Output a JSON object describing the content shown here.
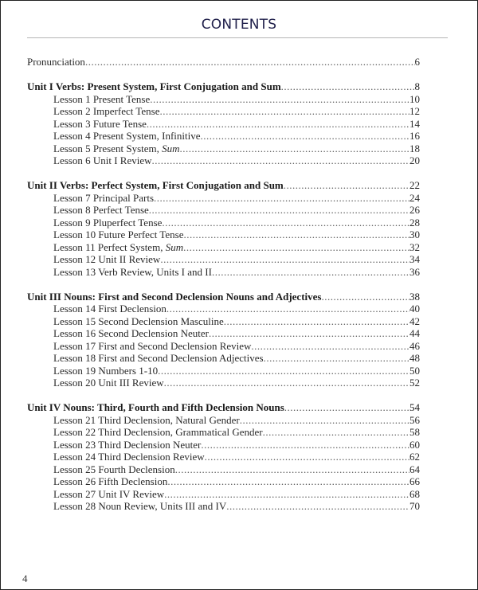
{
  "title": "CONTENTS",
  "page_number": "4",
  "sections": [
    {
      "entries": [
        {
          "type": "top",
          "label": "Pronunciation ",
          "page": "6"
        }
      ]
    },
    {
      "entries": [
        {
          "type": "unit",
          "label": "Unit I   Verbs:  Present System, First Conjugation and Sum  ",
          "page": "8"
        },
        {
          "type": "lesson",
          "label": "Lesson 1 Present Tense",
          "page": "10"
        },
        {
          "type": "lesson",
          "label": "Lesson 2 Imperfect Tense",
          "page": "12"
        },
        {
          "type": "lesson",
          "label": "Lesson 3 Future Tense ",
          "page": "14"
        },
        {
          "type": "lesson",
          "label": "Lesson 4 Present System, Infinitive",
          "page": "16"
        },
        {
          "type": "lesson",
          "label": "Lesson 5 Present System, ",
          "em": "Sum",
          "page": "18"
        },
        {
          "type": "lesson",
          "label": "Lesson 6 Unit I Review ",
          "page": "20"
        }
      ]
    },
    {
      "entries": [
        {
          "type": "unit",
          "label": "Unit II  Verbs: Perfect System, First Conjugation and Sum ",
          "page": "22"
        },
        {
          "type": "lesson",
          "label": "Lesson 7 Principal Parts",
          "page": "24"
        },
        {
          "type": "lesson",
          "label": "Lesson 8 Perfect Tense",
          "page": "26"
        },
        {
          "type": "lesson",
          "label": "Lesson 9 Pluperfect Tense",
          "page": "28"
        },
        {
          "type": "lesson",
          "label": "Lesson 10 Future Perfect Tense ",
          "page": "30"
        },
        {
          "type": "lesson",
          "label": "Lesson 11 Perfect System, ",
          "em": "Sum",
          "page": "32"
        },
        {
          "type": "lesson",
          "label": "Lesson 12 Unit II Review ",
          "page": "34"
        },
        {
          "type": "lesson",
          "label": "Lesson 13 Verb Review, Units I and II  ",
          "page": "36"
        }
      ]
    },
    {
      "entries": [
        {
          "type": "unit",
          "label": "Unit III  Nouns:  First and Second Declension Nouns and Adjectives",
          "page": "38"
        },
        {
          "type": "lesson",
          "label": "Lesson 14 First Declension",
          "page": "40"
        },
        {
          "type": "lesson",
          "label": "Lesson 15 Second Declension Masculine",
          "page": "42"
        },
        {
          "type": "lesson",
          "label": "Lesson 16 Second Declension Neuter ",
          "page": "44"
        },
        {
          "type": "lesson",
          "label": "Lesson 17 First and Second Declension Review ",
          "page": "46"
        },
        {
          "type": "lesson",
          "label": "Lesson 18 First and Second Declension Adjectives",
          "page": "48"
        },
        {
          "type": "lesson",
          "label": "Lesson 19 Numbers 1-10",
          "page": "50"
        },
        {
          "type": "lesson",
          "label": "Lesson 20 Unit III Review",
          "page": "52"
        }
      ]
    },
    {
      "entries": [
        {
          "type": "unit",
          "label": "Unit IV  Nouns:  Third, Fourth and Fifth Declension Nouns  ",
          "page": "54"
        },
        {
          "type": "lesson",
          "label": "Lesson 21 Third Declension,  Natural Gender",
          "page": "56"
        },
        {
          "type": "lesson",
          "label": "Lesson 22 Third Declension, Grammatical Gender ",
          "page": "58"
        },
        {
          "type": "lesson",
          "label": "Lesson 23 Third Declension Neuter ",
          "page": "60"
        },
        {
          "type": "lesson",
          "label": "Lesson 24 Third Declension Review ",
          "page": "62"
        },
        {
          "type": "lesson",
          "label": "Lesson 25 Fourth Declension ",
          "page": "64"
        },
        {
          "type": "lesson",
          "label": "Lesson 26 Fifth Declension ",
          "page": "66"
        },
        {
          "type": "lesson",
          "label": "Lesson 27 Unit IV Review",
          "page": "68"
        },
        {
          "type": "lesson",
          "label": "Lesson 28 Noun Review, Units III and IV ",
          "page": "70"
        }
      ]
    }
  ]
}
